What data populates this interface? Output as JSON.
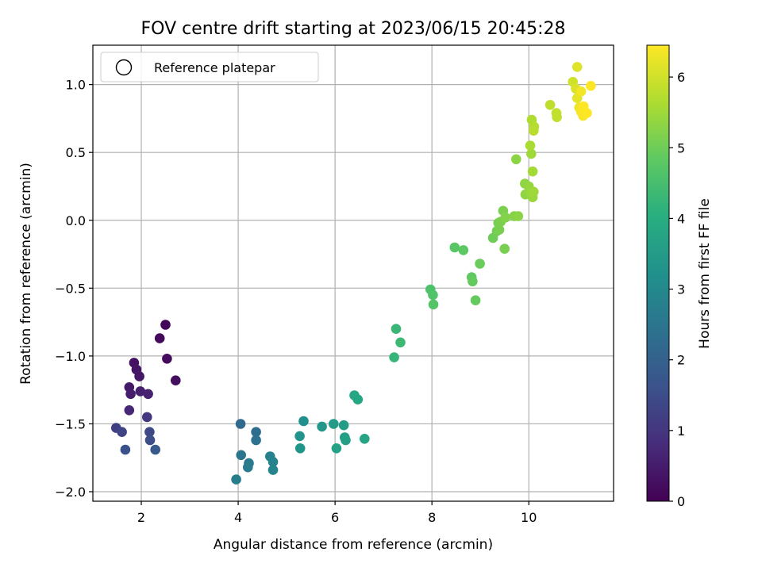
{
  "chart_data": {
    "type": "scatter",
    "title": "FOV centre drift starting at 2023/06/15 20:45:28",
    "xlabel": "Angular distance from reference (arcmin)",
    "ylabel": "Rotation from reference (arcmin)",
    "xlim": [
      1.0,
      11.75
    ],
    "ylim": [
      -2.07,
      1.29
    ],
    "xticks": [
      2,
      4,
      6,
      8,
      10
    ],
    "yticks": [
      -2.0,
      -1.5,
      -1.0,
      -0.5,
      0.0,
      0.5,
      1.0
    ],
    "xtick_labels": [
      "2",
      "4",
      "6",
      "8",
      "10"
    ],
    "ytick_labels": [
      "−2.0",
      "−1.5",
      "−1.0",
      "−0.5",
      "0.0",
      "0.5",
      "1.0"
    ],
    "grid": true,
    "legend": {
      "position": "top-left",
      "entries": [
        {
          "label": "Reference platepar",
          "marker": "open-circle"
        }
      ]
    },
    "colorbar": {
      "label": "Hours from first FF file",
      "colormap": "viridis",
      "range": [
        0,
        6.45
      ],
      "ticks": [
        0,
        1,
        2,
        3,
        4,
        5,
        6
      ],
      "tick_labels": [
        "0",
        "1",
        "2",
        "3",
        "4",
        "5",
        "6"
      ]
    },
    "series": [
      {
        "points": [
          [
            2.5,
            -0.77,
            0.1
          ],
          [
            2.38,
            -0.87,
            0.15
          ],
          [
            2.53,
            -1.02,
            0.2
          ],
          [
            2.71,
            -1.18,
            0.25
          ],
          [
            1.85,
            -1.05,
            0.3
          ],
          [
            1.9,
            -1.1,
            0.35
          ],
          [
            1.96,
            -1.15,
            0.4
          ],
          [
            1.75,
            -1.23,
            0.45
          ],
          [
            1.78,
            -1.28,
            0.5
          ],
          [
            1.98,
            -1.26,
            0.55
          ],
          [
            2.14,
            -1.28,
            0.6
          ],
          [
            1.75,
            -1.4,
            0.7
          ],
          [
            2.12,
            -1.45,
            1.0
          ],
          [
            1.48,
            -1.53,
            1.2
          ],
          [
            1.6,
            -1.56,
            1.3
          ],
          [
            2.17,
            -1.56,
            1.4
          ],
          [
            2.18,
            -1.62,
            1.5
          ],
          [
            1.67,
            -1.69,
            1.6
          ],
          [
            2.29,
            -1.69,
            1.8
          ],
          [
            4.05,
            -1.5,
            2.2
          ],
          [
            4.37,
            -1.56,
            2.3
          ],
          [
            4.37,
            -1.62,
            2.4
          ],
          [
            4.06,
            -1.73,
            2.5
          ],
          [
            4.22,
            -1.79,
            2.6
          ],
          [
            4.2,
            -1.82,
            2.65
          ],
          [
            3.96,
            -1.91,
            2.7
          ],
          [
            4.66,
            -1.74,
            2.8
          ],
          [
            4.72,
            -1.78,
            2.85
          ],
          [
            4.72,
            -1.84,
            2.9
          ],
          [
            5.35,
            -1.48,
            3.2
          ],
          [
            5.27,
            -1.59,
            3.3
          ],
          [
            5.28,
            -1.68,
            3.35
          ],
          [
            5.73,
            -1.52,
            3.4
          ],
          [
            5.97,
            -1.5,
            3.5
          ],
          [
            6.18,
            -1.51,
            3.55
          ],
          [
            6.2,
            -1.6,
            3.6
          ],
          [
            6.22,
            -1.62,
            3.65
          ],
          [
            6.03,
            -1.68,
            3.7
          ],
          [
            6.61,
            -1.61,
            3.75
          ],
          [
            6.4,
            -1.29,
            3.8
          ],
          [
            6.47,
            -1.32,
            3.85
          ],
          [
            7.26,
            -0.8,
            4.3
          ],
          [
            7.35,
            -0.9,
            4.35
          ],
          [
            7.22,
            -1.01,
            4.25
          ],
          [
            7.97,
            -0.51,
            4.6
          ],
          [
            8.02,
            -0.55,
            4.65
          ],
          [
            8.03,
            -0.62,
            4.7
          ],
          [
            8.47,
            -0.2,
            4.75
          ],
          [
            8.65,
            -0.22,
            4.8
          ],
          [
            8.82,
            -0.42,
            4.85
          ],
          [
            8.84,
            -0.45,
            4.9
          ],
          [
            8.9,
            -0.59,
            4.9
          ],
          [
            8.99,
            -0.32,
            4.95
          ],
          [
            9.26,
            -0.13,
            5.0
          ],
          [
            9.34,
            -0.08,
            5.05
          ],
          [
            9.37,
            -0.02,
            5.1
          ],
          [
            9.39,
            -0.07,
            5.1
          ],
          [
            9.42,
            -0.01,
            5.15
          ],
          [
            9.47,
            0.07,
            5.15
          ],
          [
            9.5,
            -0.21,
            5.1
          ],
          [
            9.52,
            0.02,
            5.2
          ],
          [
            9.7,
            0.03,
            5.25
          ],
          [
            9.78,
            0.03,
            5.3
          ],
          [
            9.74,
            0.45,
            5.3
          ],
          [
            9.92,
            0.27,
            5.35
          ],
          [
            9.93,
            0.19,
            5.35
          ],
          [
            10.0,
            0.25,
            5.4
          ],
          [
            10.05,
            0.2,
            5.45
          ],
          [
            10.08,
            0.17,
            5.45
          ],
          [
            10.1,
            0.21,
            5.5
          ],
          [
            10.05,
            0.49,
            5.5
          ],
          [
            10.08,
            0.36,
            5.55
          ],
          [
            10.03,
            0.55,
            5.6
          ],
          [
            10.06,
            0.74,
            5.65
          ],
          [
            10.11,
            0.69,
            5.7
          ],
          [
            10.1,
            0.66,
            5.75
          ],
          [
            10.44,
            0.85,
            5.8
          ],
          [
            10.57,
            0.79,
            5.85
          ],
          [
            10.58,
            0.76,
            5.85
          ],
          [
            10.91,
            1.02,
            6.0
          ],
          [
            10.97,
            0.97,
            6.1
          ],
          [
            11.0,
            1.13,
            6.15
          ],
          [
            11.0,
            0.9,
            6.2
          ],
          [
            11.04,
            0.83,
            6.3
          ],
          [
            11.08,
            0.95,
            6.35
          ],
          [
            11.08,
            0.8,
            6.4
          ],
          [
            11.12,
            0.77,
            6.4
          ],
          [
            11.13,
            0.84,
            6.45
          ],
          [
            11.2,
            0.79,
            6.45
          ],
          [
            11.28,
            0.99,
            6.45
          ]
        ]
      }
    ]
  }
}
